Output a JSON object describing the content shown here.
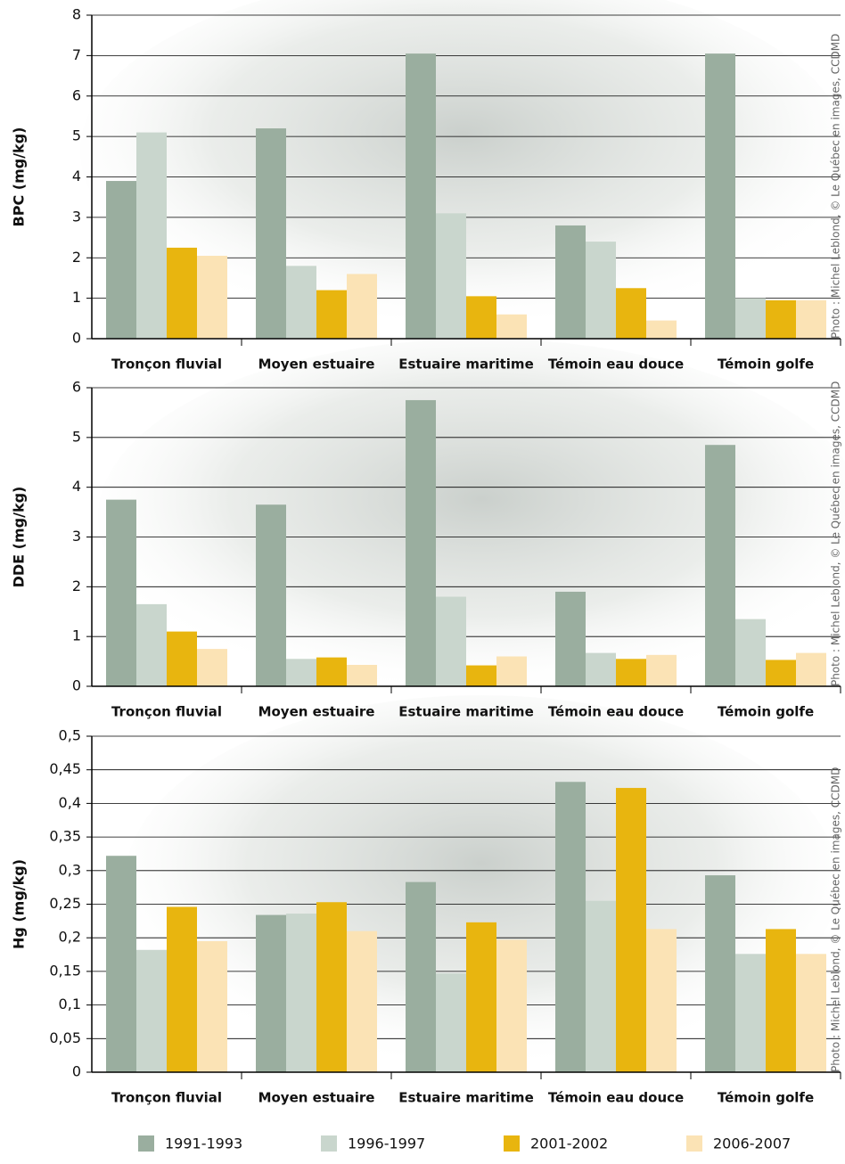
{
  "chart_data": [
    {
      "type": "bar",
      "y_label": "BPC (mg/kg)",
      "annotation": "Photo : Michel Leblond, © Le Québec en images, CCDMD",
      "categories": [
        "Tronçon fluvial",
        "Moyen estuaire",
        "Estuaire maritime",
        "Témoin eau douce",
        "Témoin golfe"
      ],
      "series": [
        {
          "color": "#9aae9f",
          "values": [
            3.9,
            5.2,
            7.05,
            2.8,
            7.05
          ]
        },
        {
          "color": "#c9d6cd",
          "values": [
            5.1,
            1.8,
            3.1,
            2.4,
            1.0
          ]
        },
        {
          "color": "#e8b50f",
          "values": [
            2.25,
            1.2,
            1.05,
            1.25,
            0.95
          ]
        },
        {
          "color": "#fbe3b5",
          "values": [
            2.05,
            1.6,
            0.6,
            0.45,
            0.95
          ]
        }
      ],
      "ylim": [
        0,
        8
      ],
      "yticks": [
        0,
        1,
        2,
        3,
        4,
        5,
        6,
        7,
        8
      ],
      "grid": true
    },
    {
      "type": "bar",
      "y_label": "DDE (mg/kg)",
      "annotation": "Photo : Michel Leblond, © Le Québec en images, CCDMD",
      "categories": [
        "Tronçon fluvial",
        "Moyen estuaire",
        "Estuaire maritime",
        "Témoin eau douce",
        "Témoin golfe"
      ],
      "series": [
        {
          "color": "#9aae9f",
          "values": [
            3.75,
            3.65,
            5.75,
            1.9,
            4.85
          ]
        },
        {
          "color": "#c9d6cd",
          "values": [
            1.65,
            0.55,
            1.8,
            0.67,
            1.35
          ]
        },
        {
          "color": "#e8b50f",
          "values": [
            1.1,
            0.58,
            0.42,
            0.55,
            0.53
          ]
        },
        {
          "color": "#fbe3b5",
          "values": [
            0.75,
            0.43,
            0.6,
            0.63,
            0.67
          ]
        }
      ],
      "ylim": [
        0,
        6
      ],
      "yticks": [
        0,
        1,
        2,
        3,
        4,
        5,
        6
      ],
      "grid": true
    },
    {
      "type": "bar",
      "y_label": "Hg (mg/kg)",
      "annotation": "Photo : Michel Leblond, © Le Québec en images, CCDMD",
      "categories": [
        "Tronçon fluvial",
        "Moyen estuaire",
        "Estuaire maritime",
        "Témoin eau douce",
        "Témoin golfe"
      ],
      "series": [
        {
          "name": "1991-1993",
          "color": "#9aae9f",
          "values": [
            0.322,
            0.234,
            0.283,
            0.432,
            0.293
          ]
        },
        {
          "name": "1996-1997",
          "color": "#c9d6cd",
          "values": [
            0.182,
            0.236,
            0.147,
            0.255,
            0.176
          ]
        },
        {
          "name": "2001-2002",
          "color": "#e8b50f",
          "values": [
            0.246,
            0.253,
            0.223,
            0.423,
            0.213
          ]
        },
        {
          "name": "2006-2007",
          "color": "#fbe3b5",
          "values": [
            0.195,
            0.21,
            0.197,
            0.213,
            0.176
          ]
        }
      ],
      "ylim": [
        0,
        0.5
      ],
      "yticks": [
        0,
        {
          "value": 0.05,
          "label": "0,05"
        },
        {
          "value": 0.1,
          "label": "0,1"
        },
        {
          "value": 0.15,
          "label": "0,15"
        },
        {
          "value": 0.2,
          "label": "0,2"
        },
        {
          "value": 0.25,
          "label": "0,25"
        },
        {
          "value": 0.3,
          "label": "0,3"
        },
        {
          "value": 0.35,
          "label": "0,35"
        },
        {
          "value": 0.4,
          "label": "0,4"
        },
        {
          "value": 0.45,
          "label": "0,45"
        },
        {
          "value": 0.5,
          "label": "0,5"
        }
      ],
      "grid": true
    }
  ]
}
